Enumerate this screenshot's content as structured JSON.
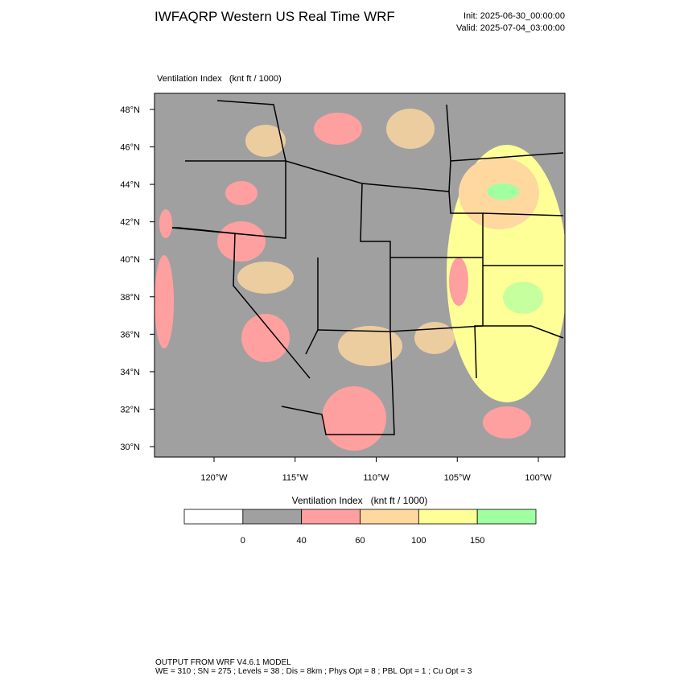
{
  "header": {
    "title": "IWFAQRP Western US Real Time WRF",
    "init": "Init: 2025-06-30_00:00:00",
    "valid": "Valid: 2025-07-04_03:00:00"
  },
  "map": {
    "field_label": "Ventilation Index   (knt ft / 1000)",
    "lat_labels": [
      "48°N",
      "46°N",
      "44°N",
      "42°N",
      "40°N",
      "38°N",
      "36°N",
      "34°N",
      "32°N",
      "30°N"
    ],
    "lon_labels": [
      "120°W",
      "115°W",
      "110°W",
      "105°W",
      "100°W"
    ]
  },
  "colorbar": {
    "title": "Ventilation Index   (knt ft / 1000)",
    "colors": [
      "#ffffff",
      "#a0a0a0",
      "#ffa0a0",
      "#ffd8a0",
      "#ffff98",
      "#a0ffa0"
    ],
    "tick_labels": [
      "0",
      "40",
      "60",
      "100",
      "150"
    ]
  },
  "footer": {
    "lines": [
      "OUTPUT FROM WRF V4.6.1 MODEL",
      "WE = 310 ; SN = 275 ; Levels = 38 ; Dis = 8km ; Phys Opt = 8 ; PBL Opt = 1 ; Cu Opt = 3"
    ]
  }
}
